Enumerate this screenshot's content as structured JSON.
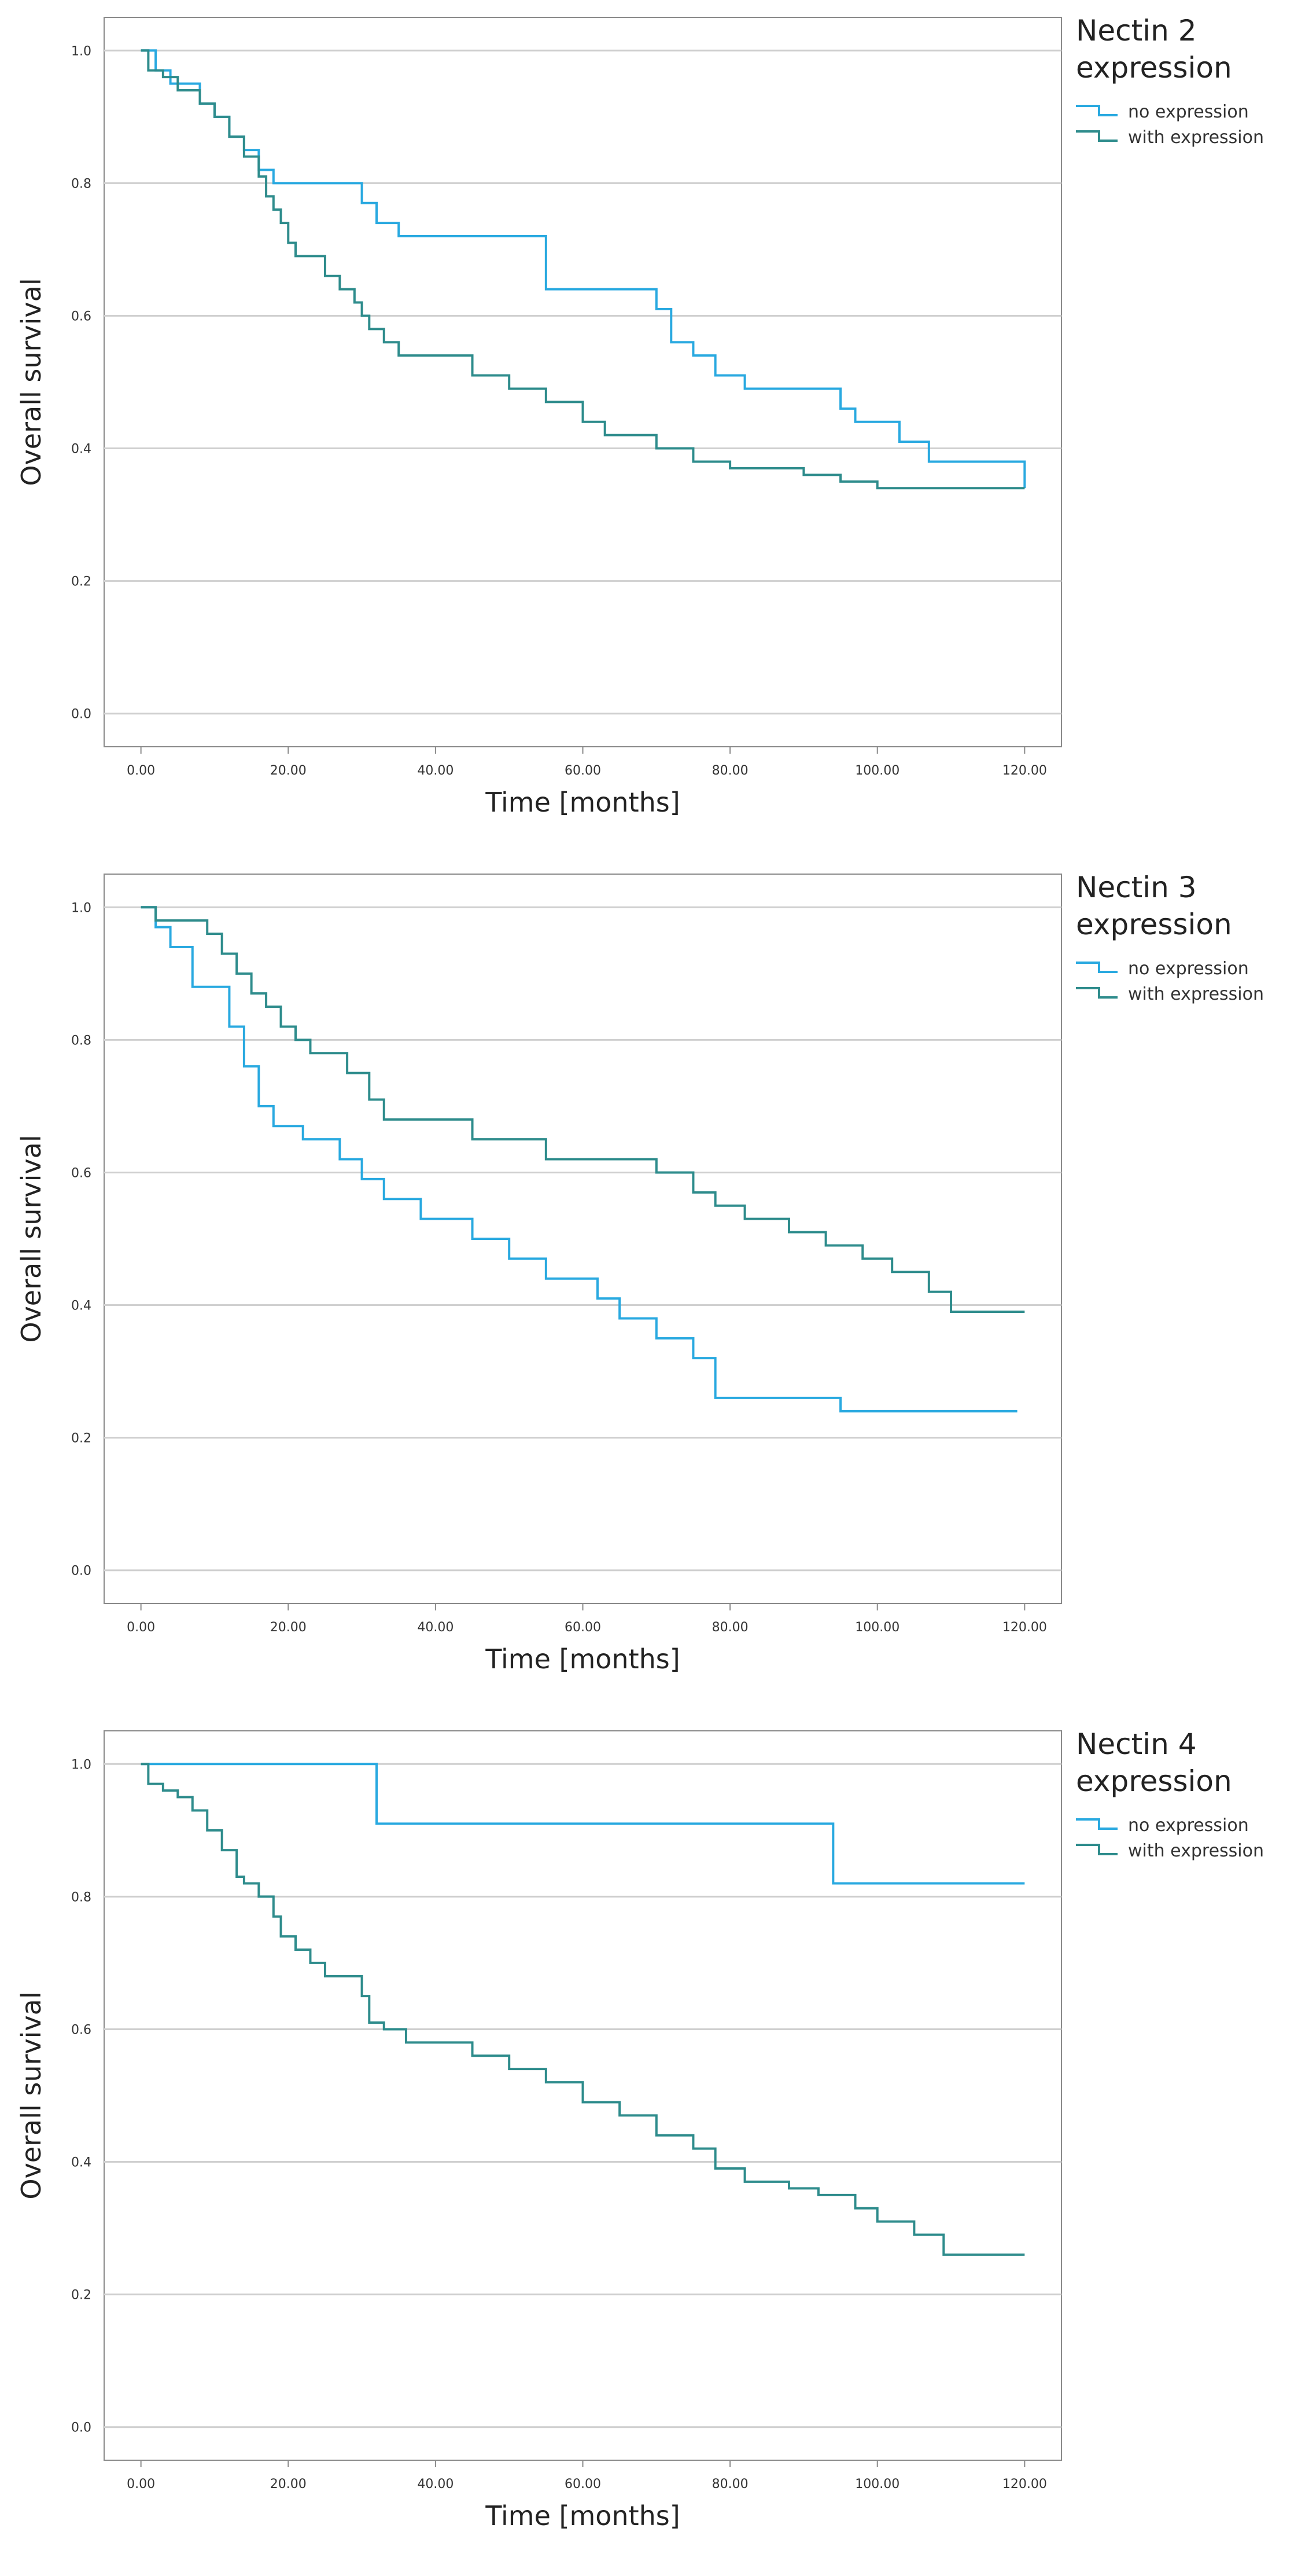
{
  "chart_data": [
    {
      "type": "line",
      "step": true,
      "legend_title": "Nectin 2 expression",
      "xlabel": "Time [months]",
      "ylabel": "Overall survival",
      "xlim": [
        -5,
        125
      ],
      "ylim": [
        -0.05,
        1.05
      ],
      "xticks": [
        0,
        20,
        40,
        60,
        80,
        100,
        120
      ],
      "xtick_labels": [
        "0.00",
        "20.00",
        "40.00",
        "60.00",
        "80.00",
        "100.00",
        "120.00"
      ],
      "yticks": [
        0,
        0.2,
        0.4,
        0.6,
        0.8,
        1.0
      ],
      "ytick_labels": [
        "0.0",
        "0.2",
        "0.4",
        "0.6",
        "0.8",
        "1.0"
      ],
      "grid": "horizontal",
      "legend_position": "right",
      "series": [
        {
          "name": "no expression",
          "color": "#29a9e0",
          "x": [
            0,
            2,
            4,
            8,
            10,
            12,
            14,
            16,
            18,
            30,
            32,
            35,
            55,
            70,
            72,
            75,
            78,
            82,
            95,
            97,
            103,
            107,
            120
          ],
          "y": [
            1.0,
            0.97,
            0.95,
            0.92,
            0.9,
            0.87,
            0.85,
            0.82,
            0.8,
            0.77,
            0.74,
            0.72,
            0.64,
            0.61,
            0.56,
            0.54,
            0.51,
            0.49,
            0.46,
            0.44,
            0.41,
            0.38,
            0.34
          ]
        },
        {
          "name": "with expression",
          "color": "#2e8c8c",
          "x": [
            0,
            1,
            3,
            5,
            8,
            10,
            12,
            14,
            16,
            17,
            18,
            19,
            20,
            21,
            25,
            27,
            29,
            30,
            31,
            33,
            35,
            45,
            50,
            55,
            60,
            63,
            70,
            75,
            80,
            90,
            95,
            100,
            120
          ],
          "y": [
            1.0,
            0.97,
            0.96,
            0.94,
            0.92,
            0.9,
            0.87,
            0.84,
            0.81,
            0.78,
            0.76,
            0.74,
            0.71,
            0.69,
            0.66,
            0.64,
            0.62,
            0.6,
            0.58,
            0.56,
            0.54,
            0.51,
            0.49,
            0.47,
            0.44,
            0.42,
            0.4,
            0.38,
            0.37,
            0.36,
            0.35,
            0.34,
            0.34
          ]
        }
      ]
    },
    {
      "type": "line",
      "step": true,
      "legend_title": "Nectin 3 expression",
      "xlabel": "Time [months]",
      "ylabel": "Overall survival",
      "xlim": [
        -5,
        125
      ],
      "ylim": [
        -0.05,
        1.05
      ],
      "xticks": [
        0,
        20,
        40,
        60,
        80,
        100,
        120
      ],
      "xtick_labels": [
        "0.00",
        "20.00",
        "40.00",
        "60.00",
        "80.00",
        "100.00",
        "120.00"
      ],
      "yticks": [
        0,
        0.2,
        0.4,
        0.6,
        0.8,
        1.0
      ],
      "ytick_labels": [
        "0.0",
        "0.2",
        "0.4",
        "0.6",
        "0.8",
        "1.0"
      ],
      "grid": "horizontal",
      "legend_position": "right",
      "series": [
        {
          "name": "no expression",
          "color": "#29a9e0",
          "x": [
            0,
            2,
            4,
            7,
            12,
            14,
            16,
            18,
            22,
            27,
            30,
            33,
            38,
            45,
            50,
            55,
            62,
            65,
            70,
            75,
            78,
            95,
            100,
            105,
            119
          ],
          "y": [
            1.0,
            0.97,
            0.94,
            0.88,
            0.82,
            0.76,
            0.7,
            0.67,
            0.65,
            0.62,
            0.59,
            0.56,
            0.53,
            0.5,
            0.47,
            0.44,
            0.41,
            0.38,
            0.35,
            0.32,
            0.26,
            0.24,
            0.24,
            0.24,
            0.24
          ]
        },
        {
          "name": "with expression",
          "color": "#2e8c8c",
          "x": [
            0,
            2,
            9,
            11,
            13,
            15,
            17,
            19,
            21,
            23,
            28,
            31,
            33,
            45,
            55,
            70,
            75,
            78,
            82,
            88,
            93,
            98,
            102,
            107,
            110,
            120
          ],
          "y": [
            1.0,
            0.98,
            0.96,
            0.93,
            0.9,
            0.87,
            0.85,
            0.82,
            0.8,
            0.78,
            0.75,
            0.71,
            0.68,
            0.65,
            0.62,
            0.6,
            0.57,
            0.55,
            0.53,
            0.51,
            0.49,
            0.47,
            0.45,
            0.42,
            0.39,
            0.39
          ]
        }
      ]
    },
    {
      "type": "line",
      "step": true,
      "legend_title": "Nectin 4 expression",
      "xlabel": "Time [months]",
      "ylabel": "Overall survival",
      "xlim": [
        -5,
        125
      ],
      "ylim": [
        -0.05,
        1.05
      ],
      "xticks": [
        0,
        20,
        40,
        60,
        80,
        100,
        120
      ],
      "xtick_labels": [
        "0.00",
        "20.00",
        "40.00",
        "60.00",
        "80.00",
        "100.00",
        "120.00"
      ],
      "yticks": [
        0,
        0.2,
        0.4,
        0.6,
        0.8,
        1.0
      ],
      "ytick_labels": [
        "0.0",
        "0.2",
        "0.4",
        "0.6",
        "0.8",
        "1.0"
      ],
      "grid": "horizontal",
      "legend_position": "right",
      "series": [
        {
          "name": "no expression",
          "color": "#29a9e0",
          "x": [
            0,
            32,
            94,
            120
          ],
          "y": [
            1.0,
            0.91,
            0.82,
            0.82
          ]
        },
        {
          "name": "with expression",
          "color": "#2e8c8c",
          "x": [
            0,
            1,
            3,
            5,
            7,
            9,
            11,
            13,
            14,
            16,
            18,
            19,
            21,
            23,
            25,
            30,
            31,
            33,
            36,
            45,
            50,
            55,
            60,
            65,
            70,
            75,
            78,
            82,
            88,
            92,
            97,
            100,
            105,
            109,
            120
          ],
          "y": [
            1.0,
            0.97,
            0.96,
            0.95,
            0.93,
            0.9,
            0.87,
            0.83,
            0.82,
            0.8,
            0.77,
            0.74,
            0.72,
            0.7,
            0.68,
            0.65,
            0.61,
            0.6,
            0.58,
            0.56,
            0.54,
            0.52,
            0.49,
            0.47,
            0.44,
            0.42,
            0.39,
            0.37,
            0.36,
            0.35,
            0.33,
            0.31,
            0.29,
            0.26,
            0.26
          ]
        }
      ]
    }
  ]
}
